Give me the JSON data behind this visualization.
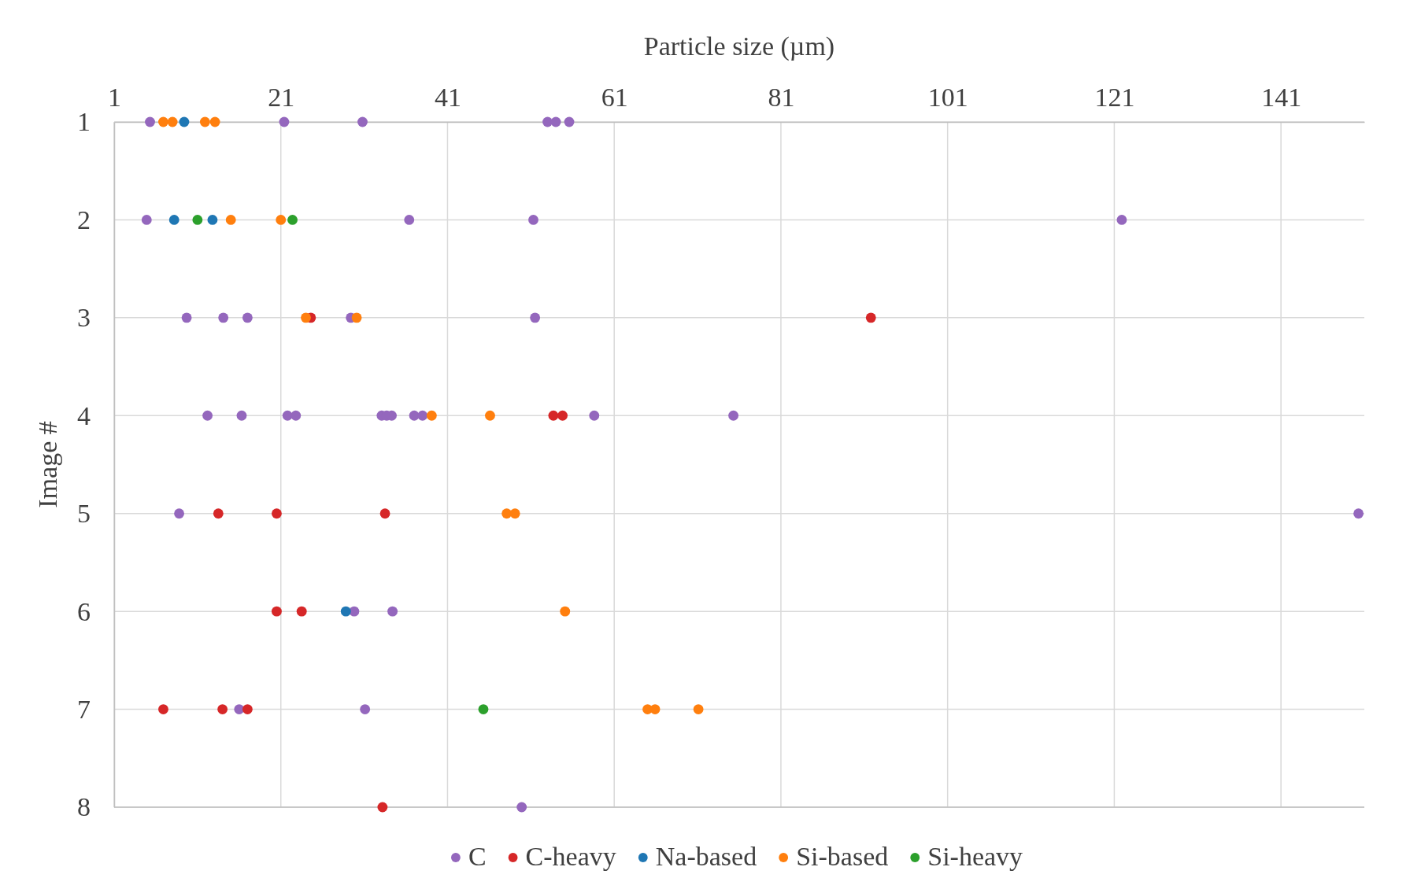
{
  "chart_data": {
    "type": "scatter",
    "xlabel": "Particle size (µm)",
    "ylabel": "Image #",
    "xlim": [
      1,
      151
    ],
    "xticks": [
      1,
      21,
      41,
      61,
      81,
      101,
      121,
      141
    ],
    "ylim": [
      8,
      1
    ],
    "yticks": [
      1,
      2,
      3,
      4,
      5,
      6,
      7,
      8
    ],
    "grid": true,
    "legend": "bottom",
    "marker": "circle",
    "series": [
      {
        "name": "C",
        "color": "#9467bd",
        "x": [
          5.3,
          21.4,
          30.8,
          53.0,
          54.0,
          55.6,
          4.9,
          36.4,
          51.3,
          121.9,
          9.7,
          14.1,
          17.0,
          29.4,
          51.5,
          12.2,
          16.3,
          21.8,
          22.8,
          33.1,
          33.7,
          34.3,
          37.0,
          38.0,
          58.6,
          75.3,
          8.8,
          150.3,
          29.8,
          34.4,
          16.0,
          31.1,
          49.9
        ],
        "values": [
          1,
          1,
          1,
          1,
          1,
          1,
          2,
          2,
          2,
          2,
          3,
          3,
          3,
          3,
          3,
          4,
          4,
          4,
          4,
          4,
          4,
          4,
          4,
          4,
          4,
          4,
          5,
          5,
          6,
          6,
          7,
          7,
          8
        ]
      },
      {
        "name": "C-heavy",
        "color": "#d62728",
        "x": [
          24.6,
          91.8,
          53.7,
          54.8,
          13.5,
          20.5,
          33.5,
          20.5,
          23.5,
          6.9,
          14.0,
          17.0,
          33.2
        ],
        "values": [
          3,
          3,
          4,
          4,
          5,
          5,
          5,
          6,
          6,
          7,
          7,
          7,
          8
        ]
      },
      {
        "name": "Na-based",
        "color": "#1f77b4",
        "x": [
          9.4,
          8.2,
          12.8,
          28.8
        ],
        "values": [
          1,
          2,
          2,
          6
        ]
      },
      {
        "name": "Si-based",
        "color": "#ff7f0e",
        "x": [
          6.9,
          8.0,
          11.9,
          13.1,
          15.0,
          21.0,
          24.0,
          30.1,
          39.1,
          46.1,
          48.1,
          49.1,
          55.1,
          65.0,
          65.9,
          71.1
        ],
        "values": [
          1,
          1,
          1,
          1,
          2,
          2,
          3,
          3,
          4,
          4,
          5,
          5,
          6,
          7,
          7,
          7
        ]
      },
      {
        "name": "Si-heavy",
        "color": "#2ca02c",
        "x": [
          11.0,
          22.4,
          45.3
        ],
        "values": [
          2,
          2,
          7
        ]
      }
    ]
  }
}
